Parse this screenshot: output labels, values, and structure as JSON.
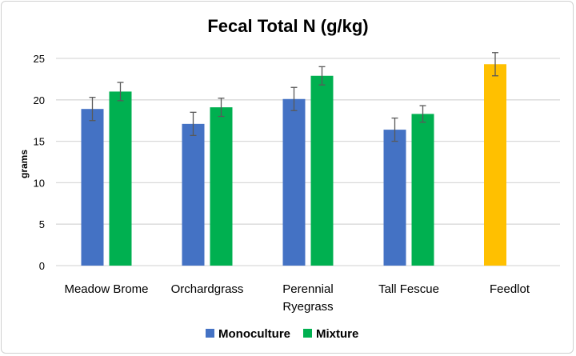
{
  "chart_data": {
    "type": "bar",
    "title": "Fecal Total N (g/kg)",
    "xlabel": "",
    "ylabel": "grams",
    "ylim": [
      0,
      25
    ],
    "yticks": [
      0,
      5,
      10,
      15,
      20,
      25
    ],
    "grid": true,
    "legend_placement": "bottom",
    "categories": [
      "Meadow Brome",
      "Orchardgrass",
      "Perennial Ryegrass",
      "Tall Fescue",
      "Feedlot"
    ],
    "category_lines": [
      [
        "Meadow Brome"
      ],
      [
        "Orchardgrass"
      ],
      [
        "Perennial",
        "Ryegrass"
      ],
      [
        "Tall Fescue"
      ],
      [
        "Feedlot"
      ]
    ],
    "series": [
      {
        "name": "Monoculture",
        "color": "#4472C4",
        "values": [
          18.9,
          17.1,
          20.1,
          16.4,
          null
        ],
        "errors": [
          1.4,
          1.4,
          1.4,
          1.4,
          null
        ]
      },
      {
        "name": "Mixture",
        "color": "#00B050",
        "values": [
          21.0,
          19.1,
          22.9,
          18.3,
          null
        ],
        "errors": [
          1.1,
          1.1,
          1.1,
          1.0,
          null
        ]
      },
      {
        "name": "Feedlot",
        "color": "#FFC000",
        "values": [
          null,
          null,
          null,
          null,
          24.3
        ],
        "errors": [
          null,
          null,
          null,
          null,
          1.4
        ],
        "in_legend": false
      }
    ]
  }
}
